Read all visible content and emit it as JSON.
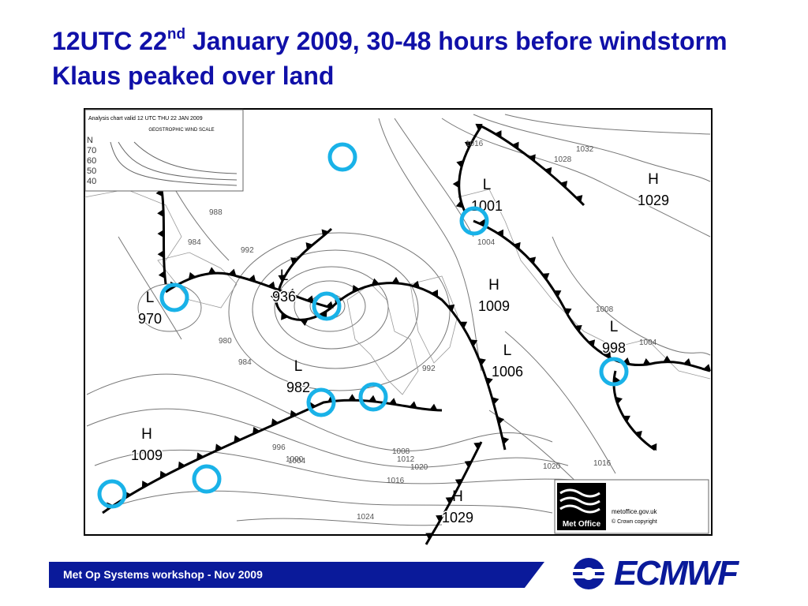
{
  "title": {
    "before": "12UTC 22",
    "sup": "nd",
    "after": " January 2009, 30-48 hours before windstorm Klaus peaked over land"
  },
  "map": {
    "header": "Analysis chart valid 12 UTC THU 22 JAN 2009",
    "scale_title": "GEOSTROPHIC WIND SCALE",
    "scale_axis": [
      "N",
      "70",
      "60",
      "50",
      "40"
    ],
    "centers": [
      {
        "letter": "L",
        "value": "936"
      },
      {
        "letter": "L",
        "value": "970"
      },
      {
        "letter": "L",
        "value": "982"
      },
      {
        "letter": "H",
        "value": "1009"
      },
      {
        "letter": "L",
        "value": "1001"
      },
      {
        "letter": "H",
        "value": "1029"
      },
      {
        "letter": "H",
        "value": "1009"
      },
      {
        "letter": "L",
        "value": "1006"
      },
      {
        "letter": "L",
        "value": "998"
      },
      {
        "letter": "H",
        "value": "1029"
      }
    ],
    "isobar_labels": [
      "980",
      "984",
      "988",
      "984",
      "992",
      "996",
      "1000",
      "1004",
      "1008",
      "1012",
      "1016",
      "1020",
      "1024",
      "1016",
      "1028",
      "1032",
      "1008",
      "1004",
      "1016",
      "1020",
      "1004",
      "992"
    ],
    "brand": "Met Office",
    "site": "metoffice.gov.uk",
    "copyright": "© Crown copyright"
  },
  "footer": {
    "text": "Met Op Systems workshop - Nov 2009",
    "logo": "ECMWF"
  }
}
